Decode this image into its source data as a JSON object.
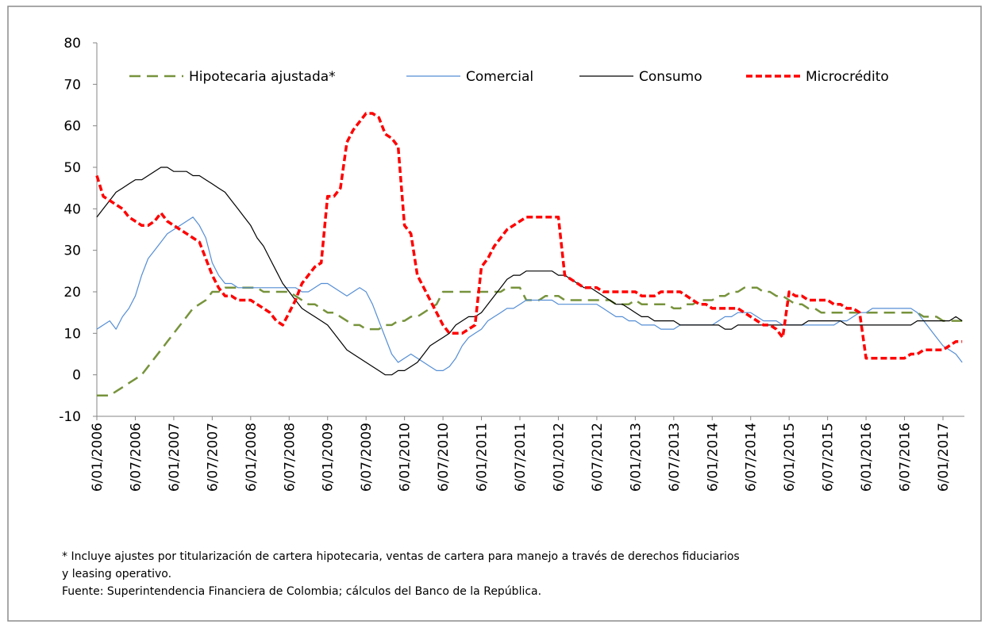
{
  "chart_data": {
    "type": "line",
    "categories": [
      "6/01/2006",
      null,
      null,
      null,
      null,
      null,
      "6/07/2006",
      null,
      null,
      null,
      null,
      null,
      "6/01/2007",
      null,
      null,
      null,
      null,
      null,
      "6/07/2007",
      null,
      null,
      null,
      null,
      null,
      "6/01/2008",
      null,
      null,
      null,
      null,
      null,
      "6/07/2008",
      null,
      null,
      null,
      null,
      null,
      "6/01/2009",
      null,
      null,
      null,
      null,
      null,
      "6/07/2009",
      null,
      null,
      null,
      null,
      null,
      "6/01/2010",
      null,
      null,
      null,
      null,
      null,
      "6/07/2010",
      null,
      null,
      null,
      null,
      null,
      "6/01/2011",
      null,
      null,
      null,
      null,
      null,
      "6/07/2011",
      null,
      null,
      null,
      null,
      null,
      "6/01/2012",
      null,
      null,
      null,
      null,
      null,
      "6/07/2012",
      null,
      null,
      null,
      null,
      null,
      "6/01/2013",
      null,
      null,
      null,
      null,
      null,
      "6/07/2013",
      null,
      null,
      null,
      null,
      null,
      "6/01/2014",
      null,
      null,
      null,
      null,
      null,
      "6/07/2014",
      null,
      null,
      null,
      null,
      null,
      "6/01/2015",
      null,
      null,
      null,
      null,
      null,
      "6/07/2015",
      null,
      null,
      null,
      null,
      null,
      "6/01/2016",
      null,
      null,
      null,
      null,
      null,
      "6/07/2016",
      null,
      null,
      null,
      null,
      null,
      "6/01/2017",
      null,
      null,
      null
    ],
    "ylim": [
      -10,
      80
    ],
    "yticks": [
      -10,
      0,
      10,
      20,
      30,
      40,
      50,
      60,
      70,
      80
    ],
    "grid": false,
    "legend": "top",
    "series": [
      {
        "name": "Hipotecaria ajustada*",
        "color": "#77933c",
        "line_style": "long-dash",
        "values": [
          -5,
          -5,
          -5,
          -4,
          -3,
          -2,
          -1,
          0,
          2,
          4,
          6,
          8,
          10,
          12,
          14,
          16,
          17,
          18,
          20,
          20,
          21,
          21,
          21,
          21,
          21,
          21,
          20,
          20,
          20,
          20,
          20,
          19,
          18,
          17,
          17,
          16,
          15,
          15,
          14,
          13,
          12,
          12,
          11,
          11,
          11,
          12,
          12,
          13,
          13,
          14,
          14,
          15,
          16,
          17,
          20,
          20,
          20,
          20,
          20,
          20,
          20,
          20,
          20,
          20,
          21,
          21,
          21,
          18,
          18,
          18,
          19,
          19,
          19,
          18,
          18,
          18,
          18,
          18,
          18,
          18,
          18,
          17,
          17,
          17,
          18,
          17,
          17,
          17,
          17,
          17,
          16,
          16,
          17,
          17,
          18,
          18,
          18,
          19,
          19,
          20,
          20,
          21,
          21,
          21,
          20,
          20,
          19,
          19,
          18,
          17,
          17,
          16,
          16,
          15,
          15,
          15,
          15,
          15,
          15,
          15,
          15,
          15,
          15,
          15,
          15,
          15,
          15,
          15,
          15,
          14,
          14,
          14,
          13,
          13,
          13,
          13
        ]
      },
      {
        "name": "Comercial",
        "color": "#558ed5",
        "line_style": "solid",
        "values": [
          11,
          12,
          13,
          11,
          14,
          16,
          19,
          24,
          28,
          30,
          32,
          34,
          35,
          36,
          37,
          38,
          36,
          33,
          27,
          24,
          22,
          22,
          21,
          21,
          21,
          21,
          21,
          21,
          21,
          21,
          21,
          21,
          20,
          20,
          21,
          22,
          22,
          21,
          20,
          19,
          20,
          21,
          20,
          17,
          13,
          9,
          5,
          3,
          4,
          5,
          4,
          3,
          2,
          1,
          1,
          2,
          4,
          7,
          9,
          10,
          11,
          13,
          14,
          15,
          16,
          16,
          17,
          18,
          18,
          18,
          18,
          18,
          17,
          17,
          17,
          17,
          17,
          17,
          17,
          16,
          15,
          14,
          14,
          13,
          13,
          12,
          12,
          12,
          11,
          11,
          11,
          12,
          12,
          12,
          12,
          12,
          12,
          13,
          14,
          14,
          15,
          15,
          15,
          14,
          13,
          13,
          13,
          12,
          12,
          12,
          12,
          12,
          12,
          12,
          12,
          12,
          13,
          13,
          14,
          15,
          15,
          16,
          16,
          16,
          16,
          16,
          16,
          16,
          15,
          13,
          11,
          9,
          7,
          6,
          5,
          3
        ]
      },
      {
        "name": "Consumo",
        "color": "#000000",
        "line_style": "solid",
        "values": [
          38,
          40,
          42,
          44,
          45,
          46,
          47,
          47,
          48,
          49,
          50,
          50,
          49,
          49,
          49,
          48,
          48,
          47,
          46,
          45,
          44,
          42,
          40,
          38,
          36,
          33,
          31,
          28,
          25,
          22,
          20,
          18,
          16,
          15,
          14,
          13,
          12,
          10,
          8,
          6,
          5,
          4,
          3,
          2,
          1,
          0,
          0,
          1,
          1,
          2,
          3,
          5,
          7,
          8,
          9,
          10,
          12,
          13,
          14,
          14,
          15,
          17,
          19,
          21,
          23,
          24,
          24,
          25,
          25,
          25,
          25,
          25,
          24,
          24,
          23,
          22,
          21,
          21,
          20,
          19,
          18,
          17,
          17,
          16,
          15,
          14,
          14,
          13,
          13,
          13,
          13,
          12,
          12,
          12,
          12,
          12,
          12,
          12,
          11,
          11,
          12,
          12,
          12,
          12,
          12,
          12,
          12,
          12,
          12,
          12,
          12,
          13,
          13,
          13,
          13,
          13,
          13,
          12,
          12,
          12,
          12,
          12,
          12,
          12,
          12,
          12,
          12,
          12,
          13,
          13,
          13,
          13,
          13,
          13,
          14,
          13
        ]
      },
      {
        "name": "Microcrédito",
        "color": "#ff0000",
        "line_style": "short-dash",
        "values": [
          48,
          43,
          42,
          41,
          40,
          38,
          37,
          36,
          36,
          37,
          39,
          37,
          36,
          35,
          34,
          33,
          32,
          28,
          24,
          21,
          19,
          19,
          18,
          18,
          18,
          17,
          16,
          15,
          13,
          12,
          15,
          18,
          22,
          24,
          26,
          27,
          43,
          43,
          45,
          56,
          59,
          61,
          63,
          63,
          62,
          58,
          57,
          55,
          36,
          34,
          24,
          21,
          18,
          15,
          12,
          10,
          10,
          10,
          11,
          12,
          26,
          28,
          31,
          33,
          35,
          36,
          37,
          38,
          38,
          38,
          38,
          38,
          38,
          24,
          23,
          22,
          21,
          21,
          21,
          20,
          20,
          20,
          20,
          20,
          20,
          19,
          19,
          19,
          20,
          20,
          20,
          20,
          19,
          18,
          17,
          17,
          16,
          16,
          16,
          16,
          16,
          15,
          14,
          13,
          12,
          12,
          11,
          9,
          20,
          19,
          19,
          18,
          18,
          18,
          18,
          17,
          17,
          16,
          16,
          15,
          4,
          4,
          4,
          4,
          4,
          4,
          4,
          5,
          5,
          6,
          6,
          6,
          6,
          7,
          8,
          8
        ]
      }
    ]
  },
  "notes": [
    "* Incluye ajustes por titularización de cartera hipotecaria, ventas de cartera para manejo a través de derechos fiduciarios",
    "y leasing operativo.",
    "Fuente: Superintendencia Financiera de Colombia; cálculos del Banco de la República."
  ]
}
